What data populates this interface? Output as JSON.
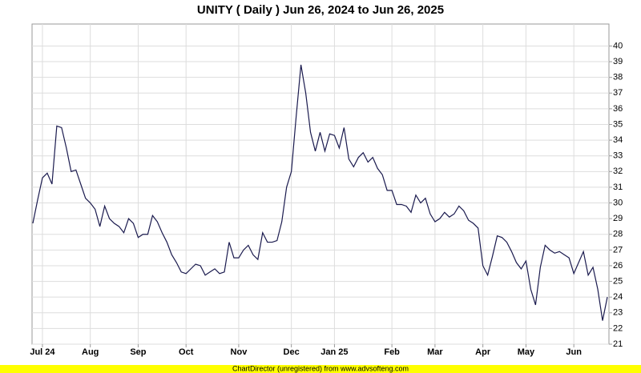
{
  "chart_data": {
    "type": "line",
    "title": "UNITY ( Daily ) Jun 26, 2024 to Jun 26, 2025",
    "categories": [
      null,
      null,
      "Jul 24",
      null,
      null,
      null,
      null,
      null,
      null,
      null,
      null,
      null,
      "Aug",
      null,
      null,
      null,
      null,
      null,
      null,
      null,
      null,
      null,
      "Sep",
      null,
      null,
      null,
      null,
      null,
      null,
      null,
      null,
      null,
      "Oct",
      null,
      null,
      null,
      null,
      null,
      null,
      null,
      null,
      null,
      null,
      "Nov",
      null,
      null,
      null,
      null,
      null,
      null,
      null,
      null,
      null,
      null,
      "Dec",
      null,
      null,
      null,
      null,
      null,
      null,
      null,
      null,
      "Jan 25",
      null,
      null,
      null,
      null,
      null,
      null,
      null,
      null,
      null,
      null,
      null,
      "Feb",
      null,
      null,
      null,
      null,
      null,
      null,
      null,
      null,
      "Mar",
      null,
      null,
      null,
      null,
      null,
      null,
      null,
      null,
      null,
      "Apr",
      null,
      null,
      null,
      null,
      null,
      null,
      null,
      null,
      "May",
      null,
      null,
      null,
      null,
      null,
      null,
      null,
      null,
      null,
      "Jun",
      null,
      null,
      null,
      null,
      null,
      null,
      null
    ],
    "series": [
      {
        "name": "UNITY",
        "color": "#1a1a4e",
        "values": [
          28.7,
          30.2,
          31.6,
          31.9,
          31.2,
          34.9,
          34.8,
          33.5,
          32.0,
          32.1,
          31.2,
          30.3,
          30.0,
          29.6,
          28.5,
          29.8,
          29.0,
          28.7,
          28.5,
          28.1,
          29.0,
          28.7,
          27.8,
          28.0,
          28.0,
          29.2,
          28.8,
          28.1,
          27.5,
          26.7,
          26.2,
          25.6,
          25.5,
          25.8,
          26.1,
          26.0,
          25.4,
          25.6,
          25.8,
          25.5,
          25.6,
          27.5,
          26.5,
          26.5,
          27.0,
          27.3,
          26.7,
          26.4,
          28.1,
          27.5,
          27.5,
          27.6,
          28.8,
          31.0,
          32.0,
          35.5,
          38.8,
          37.0,
          34.5,
          33.3,
          34.5,
          33.3,
          34.4,
          34.3,
          33.5,
          34.8,
          32.8,
          32.3,
          32.9,
          33.2,
          32.6,
          32.9,
          32.2,
          31.8,
          30.8,
          30.8,
          29.9,
          29.9,
          29.8,
          29.4,
          30.5,
          30.0,
          30.3,
          29.3,
          28.8,
          29.0,
          29.4,
          29.1,
          29.3,
          29.8,
          29.5,
          28.9,
          28.7,
          28.4,
          26.0,
          25.4,
          26.6,
          27.9,
          27.8,
          27.5,
          26.9,
          26.2,
          25.8,
          26.3,
          24.5,
          23.5,
          25.9,
          27.3,
          27.0,
          26.8,
          26.9,
          26.7,
          26.5,
          25.5,
          26.2,
          26.9,
          25.4,
          25.9,
          24.5,
          22.5,
          24.0
        ]
      }
    ],
    "ylim": [
      21,
      41.4
    ],
    "yticks": [
      21,
      22,
      23,
      24,
      25,
      26,
      27,
      28,
      29,
      30,
      31,
      32,
      33,
      34,
      35,
      36,
      37,
      38,
      39,
      40
    ],
    "grid": true
  },
  "footer": "ChartDirector (unregistered) from www.advsofteng.com"
}
